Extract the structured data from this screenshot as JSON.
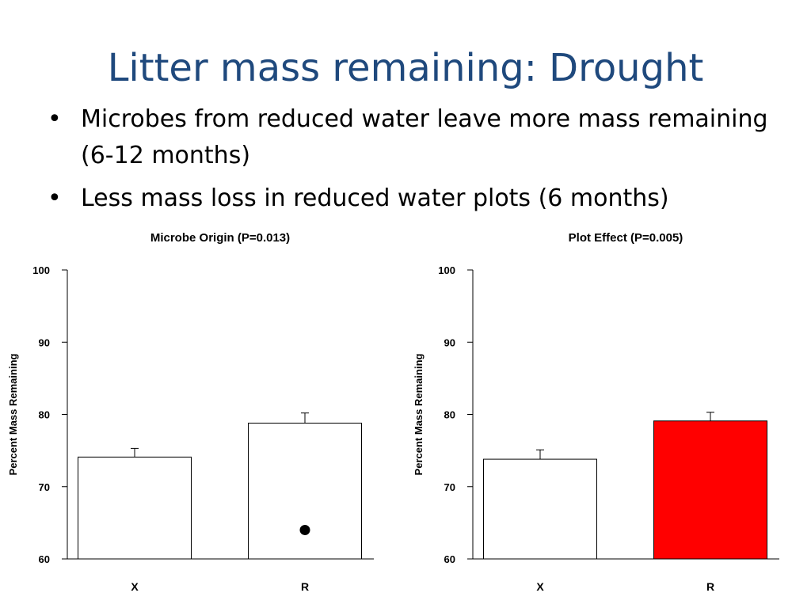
{
  "slide": {
    "title": "Litter mass remaining: Drought",
    "bullets": [
      "Microbes from reduced water leave more mass remaining (6-12 months)",
      "Less mass loss in reduced water plots (6 months)"
    ],
    "bullet_symbol": "•"
  },
  "chart_data": [
    {
      "type": "bar",
      "title": "Microbe Origin (P=0.013)",
      "ylabel": "Percent Mass Remaining",
      "xlabel": "",
      "categories": [
        "X",
        "R"
      ],
      "values": [
        74.1,
        78.8
      ],
      "errors": [
        1.2,
        1.4
      ],
      "bar_colors": [
        "#ffffff",
        "#ffffff"
      ],
      "ylim": [
        60,
        100
      ],
      "yticks": [
        60,
        70,
        80,
        90,
        100
      ],
      "grid": false,
      "extra_points": [
        {
          "category": "R",
          "y": 64
        }
      ]
    },
    {
      "type": "bar",
      "title": "Plot Effect (P=0.005)",
      "ylabel": "Percent Mass Remaining",
      "xlabel": "",
      "categories": [
        "X",
        "R"
      ],
      "values": [
        73.8,
        79.1
      ],
      "errors": [
        1.3,
        1.2
      ],
      "bar_colors": [
        "#ffffff",
        "#ff0000"
      ],
      "ylim": [
        60,
        100
      ],
      "yticks": [
        60,
        70,
        80,
        90,
        100
      ],
      "grid": false
    }
  ]
}
